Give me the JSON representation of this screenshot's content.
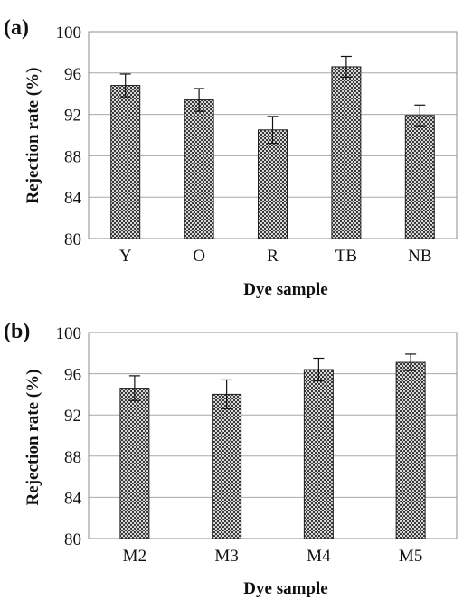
{
  "chart_data": [
    {
      "type": "bar",
      "panel_label": "(a)",
      "categories": [
        "Y",
        "O",
        "R",
        "TB",
        "NB"
      ],
      "values": [
        94.8,
        93.4,
        90.5,
        96.6,
        91.9
      ],
      "error": [
        1.1,
        1.1,
        1.3,
        1.0,
        1.0
      ],
      "xlabel": "Dye sample",
      "ylabel": "Rejection rate (%)",
      "ylim": [
        80,
        100
      ],
      "yticks": [
        80,
        84,
        88,
        92,
        96,
        100
      ],
      "grid": true,
      "bar_fill": "crosshatch"
    },
    {
      "type": "bar",
      "panel_label": "(b)",
      "categories": [
        "M2",
        "M3",
        "M4",
        "M5"
      ],
      "values": [
        94.6,
        94.0,
        96.4,
        97.1
      ],
      "error": [
        1.2,
        1.4,
        1.1,
        0.8
      ],
      "xlabel": "Dye sample",
      "ylabel": "Rejection rate (%)",
      "ylim": [
        80,
        100
      ],
      "yticks": [
        80,
        84,
        88,
        92,
        96,
        100
      ],
      "grid": true,
      "bar_fill": "crosshatch"
    }
  ]
}
